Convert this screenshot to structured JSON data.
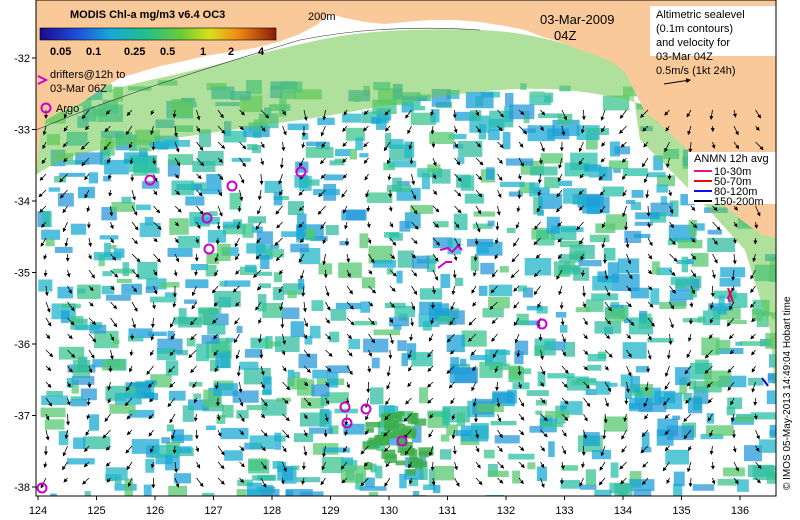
{
  "colorbar": {
    "title": "MODIS Chl-a mg/m3 v6.4 OC3",
    "ticks": [
      "0.05",
      "0.1",
      "0.25",
      "0.5",
      "1",
      "2",
      "4"
    ]
  },
  "drifters": {
    "line1": "drifters@12h to",
    "line2": "03-Mar 06Z"
  },
  "argo_label": "Argo",
  "isobath_label": "200m",
  "date": "03-Mar-2009",
  "time": "04Z",
  "altimetry_note": [
    "Altimetric sealevel",
    "(0.1m contours)",
    "and velocity for",
    "03-Mar 04Z",
    "0.5m/s (1kt 24h)"
  ],
  "anmn_legend": {
    "title": "ANMN 12h avg",
    "items": [
      {
        "label": "10-30m",
        "color": "#e0158f"
      },
      {
        "label": "50-70m",
        "color": "#e01010"
      },
      {
        "label": "80-120m",
        "color": "#1010e0"
      },
      {
        "label": "150-200m",
        "color": "#000000"
      }
    ]
  },
  "x_ticks": [
    "124",
    "125",
    "126",
    "127",
    "128",
    "129",
    "130",
    "131",
    "132",
    "133",
    "134",
    "135",
    "136"
  ],
  "y_ticks": [
    "-32",
    "-33",
    "-34",
    "-35",
    "-36",
    "-37",
    "-38"
  ],
  "credit": "© IMOS 05-May-2013 14:49:04 Hobart time",
  "colors": {
    "land": "#f9c99a",
    "marker": "#cc00cc",
    "arrow": "#000000"
  }
}
